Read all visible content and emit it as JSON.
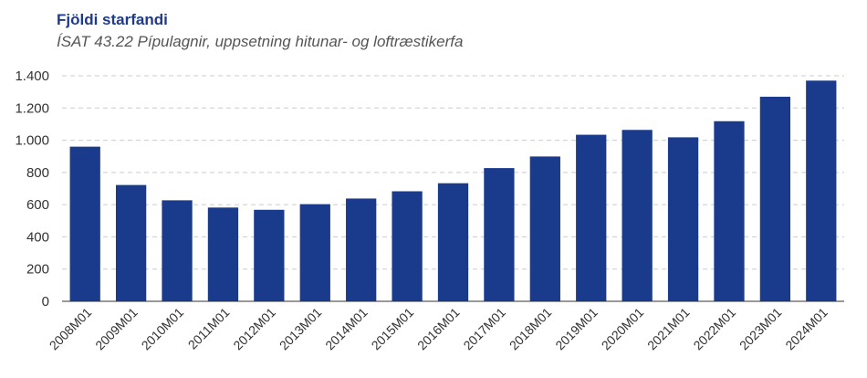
{
  "chart_data": {
    "type": "bar",
    "title": "Fjöldi starfandi",
    "subtitle": "ÍSAT 43.22 Pípulagnir, uppsetning hitunar- og loftræstikerfa",
    "categories": [
      "2008M01",
      "2009M01",
      "2010M01",
      "2011M01",
      "2012M01",
      "2013M01",
      "2014M01",
      "2015M01",
      "2016M01",
      "2017M01",
      "2018M01",
      "2019M01",
      "2020M01",
      "2021M01",
      "2022M01",
      "2023M01",
      "2024M01"
    ],
    "values": [
      960,
      722,
      627,
      582,
      568,
      603,
      638,
      683,
      733,
      827,
      899,
      1034,
      1064,
      1018,
      1118,
      1270,
      1370
    ],
    "ylim": [
      0,
      1400
    ],
    "yticks": [
      0,
      200,
      400,
      600,
      800,
      1000,
      1200,
      1400
    ],
    "ytick_labels": [
      "0",
      "200",
      "400",
      "600",
      "800",
      "1.000",
      "1.200",
      "1.400"
    ],
    "grid": true,
    "bar_color": "#1a3a8c"
  }
}
